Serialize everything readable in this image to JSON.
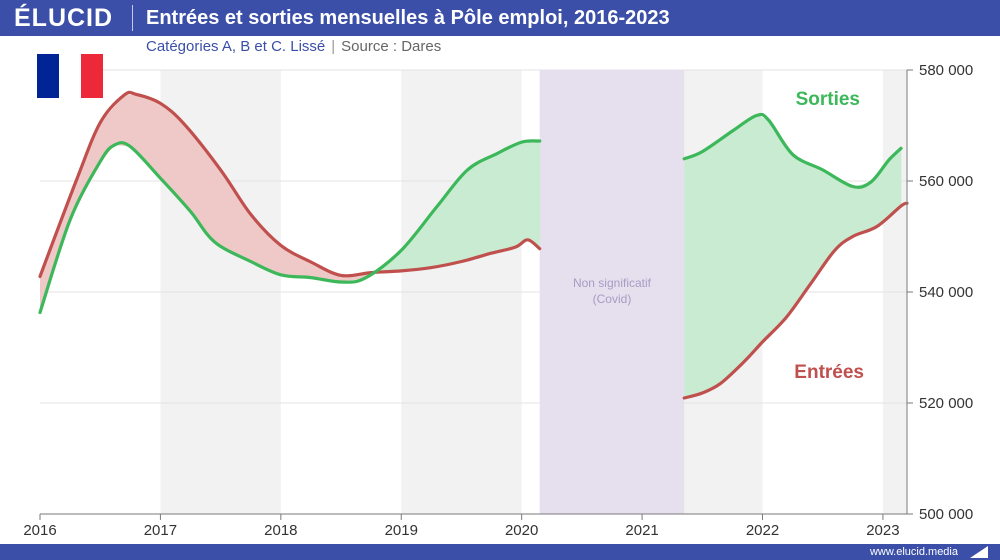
{
  "brand": {
    "logo": "ÉLUCID",
    "url": "www.elucid.media"
  },
  "header": {
    "title": "Entrées et sorties mensuelles à Pôle emploi, 2016-2023",
    "subtitle": "Catégories A, B et C. Lissé",
    "separator": "|",
    "source": "Source : Dares"
  },
  "flag": {
    "country": "France",
    "colors": [
      "#002395",
      "#ffffff",
      "#ed2939"
    ]
  },
  "colors": {
    "entrees": "#c0504d",
    "sorties": "#3cb85a",
    "entrees_fill": "#efc9c7",
    "sorties_fill": "#c9ebd2",
    "covid_band": "#e6e0ee",
    "alt_band": "#f2f2f2",
    "brand": "#3b4fa8"
  },
  "chart_data": {
    "type": "area",
    "title": "Entrées et sorties mensuelles à Pôle emploi, 2016-2023",
    "subtitle": "Catégories A, B et C. Lissé",
    "xlim": [
      2016.0,
      2023.2
    ],
    "ylim": [
      500000,
      580000
    ],
    "x_ticks": [
      2016,
      2017,
      2018,
      2019,
      2020,
      2021,
      2022,
      2023
    ],
    "x_tick_labels": [
      "2016",
      "2017",
      "2018",
      "2019",
      "2020",
      "2021",
      "2022",
      "2023"
    ],
    "y_ticks": [
      500000,
      520000,
      540000,
      560000,
      580000
    ],
    "y_tick_labels": [
      "500 000",
      "520 000",
      "540 000",
      "560 000",
      "580 000"
    ],
    "y_axis_side": "right",
    "grid": true,
    "annotation": {
      "text": [
        "Non significatif",
        "(Covid)"
      ],
      "x_range": [
        2020.15,
        2021.35
      ]
    },
    "series": [
      {
        "name": "Sorties",
        "segments": [
          [
            [
              2016.0,
              536300
            ],
            [
              2016.25,
              553000
            ],
            [
              2016.5,
              563500
            ],
            [
              2016.62,
              566500
            ],
            [
              2016.75,
              566200
            ],
            [
              2017.0,
              560500
            ],
            [
              2017.25,
              554500
            ],
            [
              2017.45,
              549000
            ],
            [
              2017.75,
              545500
            ],
            [
              2018.0,
              543100
            ],
            [
              2018.25,
              542600
            ],
            [
              2018.5,
              541800
            ],
            [
              2018.7,
              542500
            ],
            [
              2019.0,
              547500
            ],
            [
              2019.3,
              555500
            ],
            [
              2019.55,
              562000
            ],
            [
              2019.8,
              565000
            ],
            [
              2020.0,
              567000
            ],
            [
              2020.15,
              567200
            ]
          ],
          [
            [
              2021.35,
              564000
            ],
            [
              2021.5,
              565300
            ],
            [
              2021.75,
              569000
            ],
            [
              2021.95,
              571800
            ],
            [
              2022.05,
              571000
            ],
            [
              2022.25,
              564800
            ],
            [
              2022.5,
              562000
            ],
            [
              2022.75,
              559000
            ],
            [
              2022.9,
              559800
            ],
            [
              2023.05,
              563800
            ],
            [
              2023.15,
              565900
            ]
          ]
        ]
      },
      {
        "name": "Entrées",
        "segments": [
          [
            [
              2016.0,
              542800
            ],
            [
              2016.3,
              560000
            ],
            [
              2016.5,
              570500
            ],
            [
              2016.7,
              575500
            ],
            [
              2016.8,
              575600
            ],
            [
              2017.0,
              574000
            ],
            [
              2017.2,
              570200
            ],
            [
              2017.5,
              562000
            ],
            [
              2017.75,
              554000
            ],
            [
              2018.0,
              548400
            ],
            [
              2018.25,
              545400
            ],
            [
              2018.5,
              543000
            ],
            [
              2018.75,
              543500
            ],
            [
              2019.0,
              543800
            ],
            [
              2019.25,
              544400
            ],
            [
              2019.5,
              545500
            ],
            [
              2019.75,
              547000
            ],
            [
              2019.95,
              548100
            ],
            [
              2020.05,
              549400
            ],
            [
              2020.15,
              547800
            ]
          ],
          [
            [
              2021.35,
              520900
            ],
            [
              2021.5,
              521800
            ],
            [
              2021.65,
              523500
            ],
            [
              2021.85,
              527500
            ],
            [
              2022.0,
              531000
            ],
            [
              2022.2,
              535500
            ],
            [
              2022.4,
              541500
            ],
            [
              2022.6,
              547500
            ],
            [
              2022.75,
              550000
            ],
            [
              2022.95,
              551800
            ],
            [
              2023.15,
              555500
            ],
            [
              2023.2,
              556000
            ]
          ]
        ]
      }
    ],
    "labels": {
      "sorties": "Sorties",
      "entrees": "Entrées"
    }
  }
}
